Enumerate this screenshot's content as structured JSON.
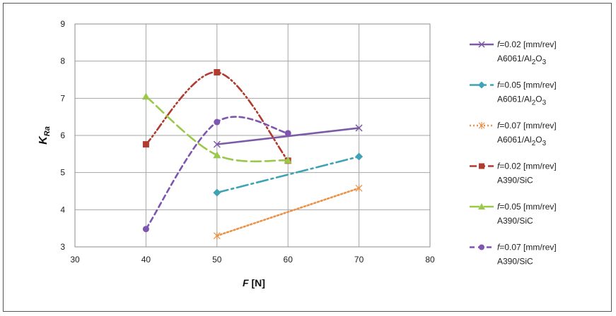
{
  "chart_data": {
    "type": "line",
    "xlabel": "F [N]",
    "xlabel_parts": {
      "symbol": "F",
      "rest": " [N]"
    },
    "ylabel_parts": {
      "main": "K",
      "sub": "Ra"
    },
    "xlim": [
      30,
      80
    ],
    "ylim": [
      3,
      9
    ],
    "xticks": [
      "30",
      "40",
      "50",
      "60",
      "70",
      "80"
    ],
    "yticks": [
      "3",
      "4",
      "5",
      "6",
      "7",
      "8",
      "9"
    ],
    "grid": "horizontal and vertical major gridlines",
    "legend_position": "right",
    "series": [
      {
        "name": "f=0.02 [mm/rev] A6061/Al2O3",
        "legend_line1": "=0.02 [mm/rev]",
        "legend_line2": "A6061/Al",
        "legend_sub": "2",
        "legend_tail": "O",
        "legend_sub2": "3",
        "color": "#7b5ba6",
        "style": "solid",
        "marker": "x",
        "curve": "linear",
        "x": [
          50,
          70
        ],
        "y": [
          5.76,
          6.2
        ]
      },
      {
        "name": "f=0.05 [mm/rev] A6061/Al2O3",
        "legend_line1": "=0.05 [mm/rev]",
        "legend_line2": "A6061/Al",
        "legend_sub": "2",
        "legend_tail": "O",
        "legend_sub2": "3",
        "color": "#3da3b5",
        "style": "dashdot",
        "marker": "diamond",
        "curve": "linear",
        "x": [
          50,
          70
        ],
        "y": [
          4.46,
          5.43
        ]
      },
      {
        "name": "f=0.07 [mm/rev] A6061/Al2O3",
        "legend_line1": "=0.07 [mm/rev]",
        "legend_line2": "A6061/Al",
        "legend_sub": "2",
        "legend_tail": "O",
        "legend_sub2": "3",
        "color": "#e8924a",
        "style": "dotted",
        "marker": "star",
        "curve": "linear",
        "x": [
          50,
          70
        ],
        "y": [
          3.3,
          4.58
        ]
      },
      {
        "name": "f=0.02 [mm/rev] A390/SiC",
        "legend_line1": "=0.02 [mm/rev]",
        "legend_line2": "A390/SiC",
        "legend_sub": "",
        "legend_tail": "",
        "legend_sub2": "",
        "color": "#b33a2e",
        "style": "dashdotdot",
        "marker": "square",
        "curve": "smooth",
        "x": [
          40,
          50,
          60
        ],
        "y": [
          5.76,
          7.7,
          5.32
        ]
      },
      {
        "name": "f=0.05 [mm/rev] A390/SiC",
        "legend_line1": "=0.05 [mm/rev]",
        "legend_line2": "A390/SiC",
        "legend_sub": "",
        "legend_tail": "",
        "legend_sub2": "",
        "color": "#9ac94a",
        "style": "longdash",
        "marker": "triangle",
        "curve": "smooth",
        "x": [
          40,
          50,
          60
        ],
        "y": [
          7.05,
          5.47,
          5.33
        ]
      },
      {
        "name": "f=0.07 [mm/rev] A390/SiC",
        "legend_line1": "=0.07 [mm/rev]",
        "legend_line2": "A390/SiC",
        "legend_sub": "",
        "legend_tail": "",
        "legend_sub2": "",
        "color": "#7e55b0",
        "style": "dashed",
        "marker": "circle",
        "curve": "smooth",
        "x": [
          40,
          50,
          60
        ],
        "y": [
          3.48,
          6.36,
          6.06
        ]
      }
    ]
  }
}
